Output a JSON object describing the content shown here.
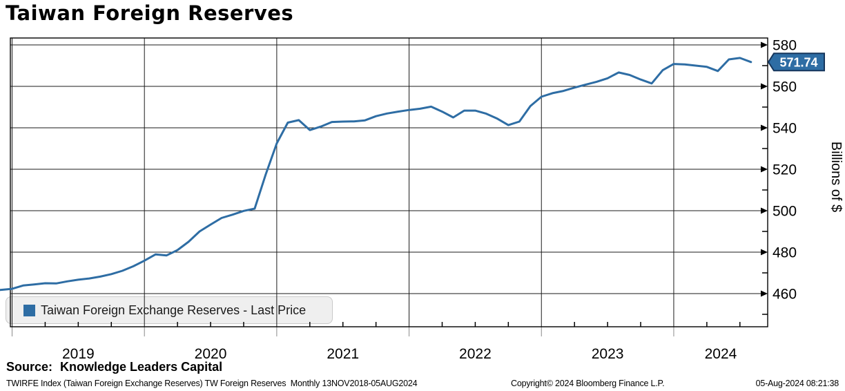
{
  "title": "Taiwan Foreign Reserves",
  "legend": {
    "series_label": "Taiwan Foreign Exchange Reserves - Last Price",
    "swatch_color": "#2e6da4"
  },
  "last_price_tag": {
    "value": "571.74",
    "fill": "#2e6da4",
    "border": "#16365c",
    "text_color": "#ffffff"
  },
  "source": {
    "label": "Source:",
    "name": "Knowledge Leaders Capital"
  },
  "footer": {
    "left": "TWIRFE Index (Taiwan Foreign Exchange Reserves) TW Foreign Reserves  Monthly 13NOV2018-05AUG2024",
    "center": "Copyright© 2024 Bloomberg Finance L.P.",
    "right": "05-Aug-2024 08:21:38"
  },
  "colors": {
    "line": "#2e6da4",
    "grid": "#1a1a1a",
    "axis": "#000000",
    "below_axis_year_line": "#8a8a8a"
  },
  "chart_data": {
    "type": "line",
    "title": "Taiwan Foreign Reserves",
    "xlabel": "",
    "ylabel": "Billions of $",
    "ylim": [
      444,
      583
    ],
    "y_ticks": [
      460,
      480,
      500,
      520,
      540,
      560,
      580
    ],
    "y_minor_step": 10,
    "grid": true,
    "legend_position": "bottom-left",
    "x_year_labels": [
      "2019",
      "2020",
      "2021",
      "2022",
      "2023",
      "2024"
    ],
    "frequency": "Monthly",
    "x": [
      "2018-11",
      "2018-12",
      "2019-01",
      "2019-02",
      "2019-03",
      "2019-04",
      "2019-05",
      "2019-06",
      "2019-07",
      "2019-08",
      "2019-09",
      "2019-10",
      "2019-11",
      "2019-12",
      "2020-01",
      "2020-02",
      "2020-03",
      "2020-04",
      "2020-05",
      "2020-06",
      "2020-07",
      "2020-08",
      "2020-09",
      "2020-10",
      "2020-11",
      "2020-12",
      "2021-01",
      "2021-02",
      "2021-03",
      "2021-04",
      "2021-05",
      "2021-06",
      "2021-07",
      "2021-08",
      "2021-09",
      "2021-10",
      "2021-11",
      "2021-12",
      "2022-01",
      "2022-02",
      "2022-03",
      "2022-04",
      "2022-05",
      "2022-06",
      "2022-07",
      "2022-08",
      "2022-09",
      "2022-10",
      "2022-11",
      "2022-12",
      "2023-01",
      "2023-02",
      "2023-03",
      "2023-04",
      "2023-05",
      "2023-06",
      "2023-07",
      "2023-08",
      "2023-09",
      "2023-10",
      "2023-11",
      "2023-12",
      "2024-01",
      "2024-02",
      "2024-03",
      "2024-04",
      "2024-05",
      "2024-06",
      "2024-07",
      "2024-08"
    ],
    "series": [
      {
        "name": "Taiwan Foreign Exchange Reserves - Last Price",
        "values": [
          461.4,
          461.8,
          462.3,
          463.9,
          464.4,
          465.0,
          464.9,
          465.9,
          466.7,
          467.3,
          468.2,
          469.4,
          471.0,
          473.2,
          475.9,
          478.9,
          478.4,
          481.0,
          485.0,
          490.0,
          493.3,
          496.5,
          498.1,
          499.9,
          501.0,
          517.5,
          532.5,
          542.5,
          543.7,
          538.9,
          540.6,
          542.8,
          543.0,
          543.1,
          543.6,
          545.6,
          546.9,
          547.8,
          548.6,
          549.2,
          550.2,
          547.8,
          545.0,
          548.3,
          548.3,
          546.8,
          544.4,
          541.3,
          543.0,
          550.5,
          555.0,
          556.7,
          557.8,
          559.4,
          560.8,
          562.2,
          563.9,
          566.7,
          565.5,
          563.3,
          561.4,
          567.8,
          570.8,
          570.6,
          570.0,
          569.4,
          567.4,
          573.0,
          573.7,
          571.74
        ]
      }
    ],
    "last_value": 571.74
  }
}
